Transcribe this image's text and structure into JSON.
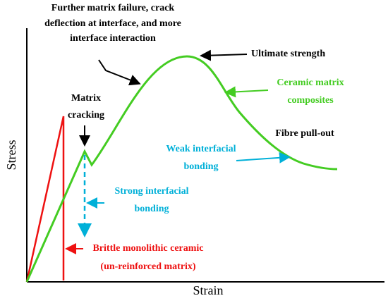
{
  "annotations": {
    "top_note": [
      "Further matrix failure, crack",
      "deflection at interface, and more",
      "interface interaction"
    ],
    "ultimate": "Ultimate strength",
    "cmc": [
      "Ceramic matrix",
      "composites"
    ],
    "matrix_cracking": [
      "Matrix",
      "cracking"
    ],
    "fibre": "Fibre pull-out",
    "weak": [
      "Weak interfacial",
      "bonding"
    ],
    "strong": [
      "Strong interfacial",
      "bonding"
    ],
    "brittle": [
      "Brittle monolithic ceramic",
      "(un-reinforced matrix)"
    ]
  },
  "axes": {
    "x_label": "Strain",
    "y_label": "Stress"
  }
}
